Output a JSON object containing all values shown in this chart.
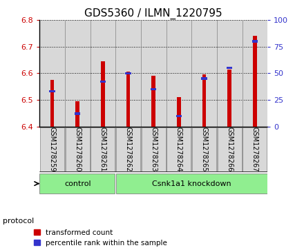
{
  "title": "GDS5360 / ILMN_1220795",
  "samples": [
    "GSM1278259",
    "GSM1278260",
    "GSM1278261",
    "GSM1278262",
    "GSM1278263",
    "GSM1278264",
    "GSM1278265",
    "GSM1278266",
    "GSM1278267"
  ],
  "transformed_counts": [
    6.575,
    6.495,
    6.645,
    6.605,
    6.59,
    6.51,
    6.595,
    6.615,
    6.74
  ],
  "percentile_ranks": [
    33,
    12,
    42,
    50,
    35,
    10,
    45,
    55,
    80
  ],
  "ylim_left": [
    6.4,
    6.8
  ],
  "ylim_right": [
    0,
    100
  ],
  "yticks_left": [
    6.4,
    6.5,
    6.6,
    6.7,
    6.8
  ],
  "yticks_right": [
    0,
    25,
    50,
    75,
    100
  ],
  "bar_color_red": "#cc0000",
  "bar_color_blue": "#3333cc",
  "protocol_groups": [
    {
      "label": "control",
      "start": 0,
      "end": 3
    },
    {
      "label": "Csnk1a1 knockdown",
      "start": 3,
      "end": 9
    }
  ],
  "protocol_color": "#90ee90",
  "protocol_label": "protocol",
  "legend_items": [
    {
      "label": "transformed count",
      "color": "#cc0000"
    },
    {
      "label": "percentile rank within the sample",
      "color": "#3333cc"
    }
  ],
  "base_value": 6.4,
  "bar_width": 0.15,
  "blue_bar_height": 0.009,
  "tick_label_color_left": "#cc0000",
  "tick_label_color_right": "#3333cc",
  "title_fontsize": 11,
  "tick_fontsize": 8,
  "label_fontsize": 8,
  "col_bg_color": "#d8d8d8",
  "plot_bg_color": "#ffffff",
  "spine_color": "#000000"
}
